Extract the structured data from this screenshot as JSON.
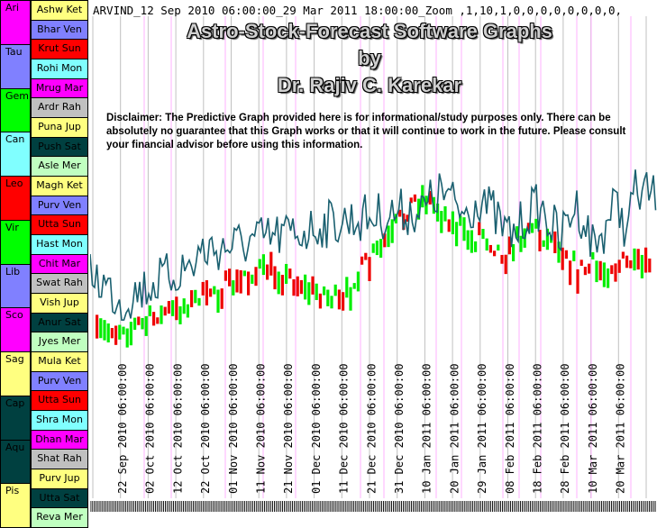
{
  "header": {
    "params": "ARVIND_12 Sep 2010 06:00:00_29 Mar 2011 18:00:00_Zoom ,1,10,1,0,0,0,0,0,0,0,0,"
  },
  "title": {
    "line1": "Astro-Stock-Forecast Software Graphs",
    "line2": "by",
    "line3": "Dr. Rajiv C. Karekar"
  },
  "disclaimer": "Disclaimer: The Predictive Graph provided here is for informational/study purposes only. There can be absolutely no guarantee that this Graph works or that it will continue to work in the future. Please consult your financial advisor before using this information.",
  "signs": [
    {
      "label": "Ari",
      "color": "#ff00ff",
      "text_color": "#000000"
    },
    {
      "label": "Tau",
      "color": "#8080ff",
      "text_color": "#000000"
    },
    {
      "label": "Gem",
      "color": "#00ff00",
      "text_color": "#000000"
    },
    {
      "label": "Can",
      "color": "#80ffff",
      "text_color": "#000000"
    },
    {
      "label": "Leo",
      "color": "#ff0000",
      "text_color": "#000000"
    },
    {
      "label": "Vir",
      "color": "#00ff00",
      "text_color": "#000000"
    },
    {
      "label": "Lib",
      "color": "#8080ff",
      "text_color": "#000000"
    },
    {
      "label": "Sco",
      "color": "#ff00ff",
      "text_color": "#000000"
    },
    {
      "label": "Sag",
      "color": "#ffff80",
      "text_color": "#000000"
    },
    {
      "label": "Cap",
      "color": "#004040",
      "text_color": "#000000"
    },
    {
      "label": "Aqu",
      "color": "#004040",
      "text_color": "#000000"
    },
    {
      "label": "Pis",
      "color": "#ffff80",
      "text_color": "#000000"
    }
  ],
  "nakshatras": [
    {
      "label": "Ashw Ket",
      "color": "#ffff80"
    },
    {
      "label": "Bhar Ven",
      "color": "#8080ff"
    },
    {
      "label": "Krut Sun",
      "color": "#ff0000"
    },
    {
      "label": "Rohi Mon",
      "color": "#80ffff"
    },
    {
      "label": "Mrug Mar",
      "color": "#ff00ff"
    },
    {
      "label": "Ardr Rah",
      "color": "#c0c0c0"
    },
    {
      "label": "Puna Jup",
      "color": "#ffff80"
    },
    {
      "label": "Push Sat",
      "color": "#004040"
    },
    {
      "label": "Asle Mer",
      "color": "#c0ffc0"
    },
    {
      "label": "Magh Ket",
      "color": "#ffff80"
    },
    {
      "label": "Purv Ven",
      "color": "#8080ff"
    },
    {
      "label": "Utta Sun",
      "color": "#ff0000"
    },
    {
      "label": "Hast Mon",
      "color": "#80ffff"
    },
    {
      "label": "Chit Mar",
      "color": "#ff00ff"
    },
    {
      "label": "Swat Rah",
      "color": "#c0c0c0"
    },
    {
      "label": "Vish Jup",
      "color": "#ffff80"
    },
    {
      "label": "Anur Sat",
      "color": "#004040"
    },
    {
      "label": "Jyes Mer",
      "color": "#c0ffc0"
    },
    {
      "label": "Mula Ket",
      "color": "#ffff80"
    },
    {
      "label": "Purv Ven",
      "color": "#8080ff"
    },
    {
      "label": "Utta Sun",
      "color": "#ff0000"
    },
    {
      "label": "Shra Mon",
      "color": "#80ffff"
    },
    {
      "label": "Dhan Mar",
      "color": "#ff00ff"
    },
    {
      "label": "Shat Rah",
      "color": "#c0c0c0"
    },
    {
      "label": "Purv Jup",
      "color": "#ffff80"
    },
    {
      "label": "Utta Sat",
      "color": "#004040"
    },
    {
      "label": "Reva Mer",
      "color": "#c0ffc0"
    }
  ],
  "chart_data": {
    "type": "line",
    "title": "",
    "x_labels": [
      "22 Sep 2010 06:00:00",
      "02 Oct 2010 06:00:00",
      "12 Oct 2010 06:00:00",
      "22 Oct 2010 06:00:00",
      "01 Nov 2010 06:00:00",
      "11 Nov 2010 06:00:00",
      "21 Nov 2010 06:00:00",
      "01 Dec 2010 06:00:00",
      "11 Dec 2010 06:00:00",
      "21 Dec 2010 06:00:00",
      "31 Dec 2010 06:00:00",
      "10 Jan 2011 06:00:00",
      "20 Jan 2011 06:00:00",
      "29 Jan 2011 06:00:00",
      "08 Feb 2011 06:00:00",
      "18 Feb 2011 06:00:00",
      "28 Feb 2011 06:00:00",
      "10 Mar 2011 06:00:00",
      "20 Mar 2011 06:00:00"
    ],
    "line_color": "#1a6070",
    "up_color": "#00ee00",
    "down_color": "#ee0000",
    "grid_gray": "#c0c0c0",
    "grid_pink": "#ffb0ff",
    "grid_on": true
  }
}
